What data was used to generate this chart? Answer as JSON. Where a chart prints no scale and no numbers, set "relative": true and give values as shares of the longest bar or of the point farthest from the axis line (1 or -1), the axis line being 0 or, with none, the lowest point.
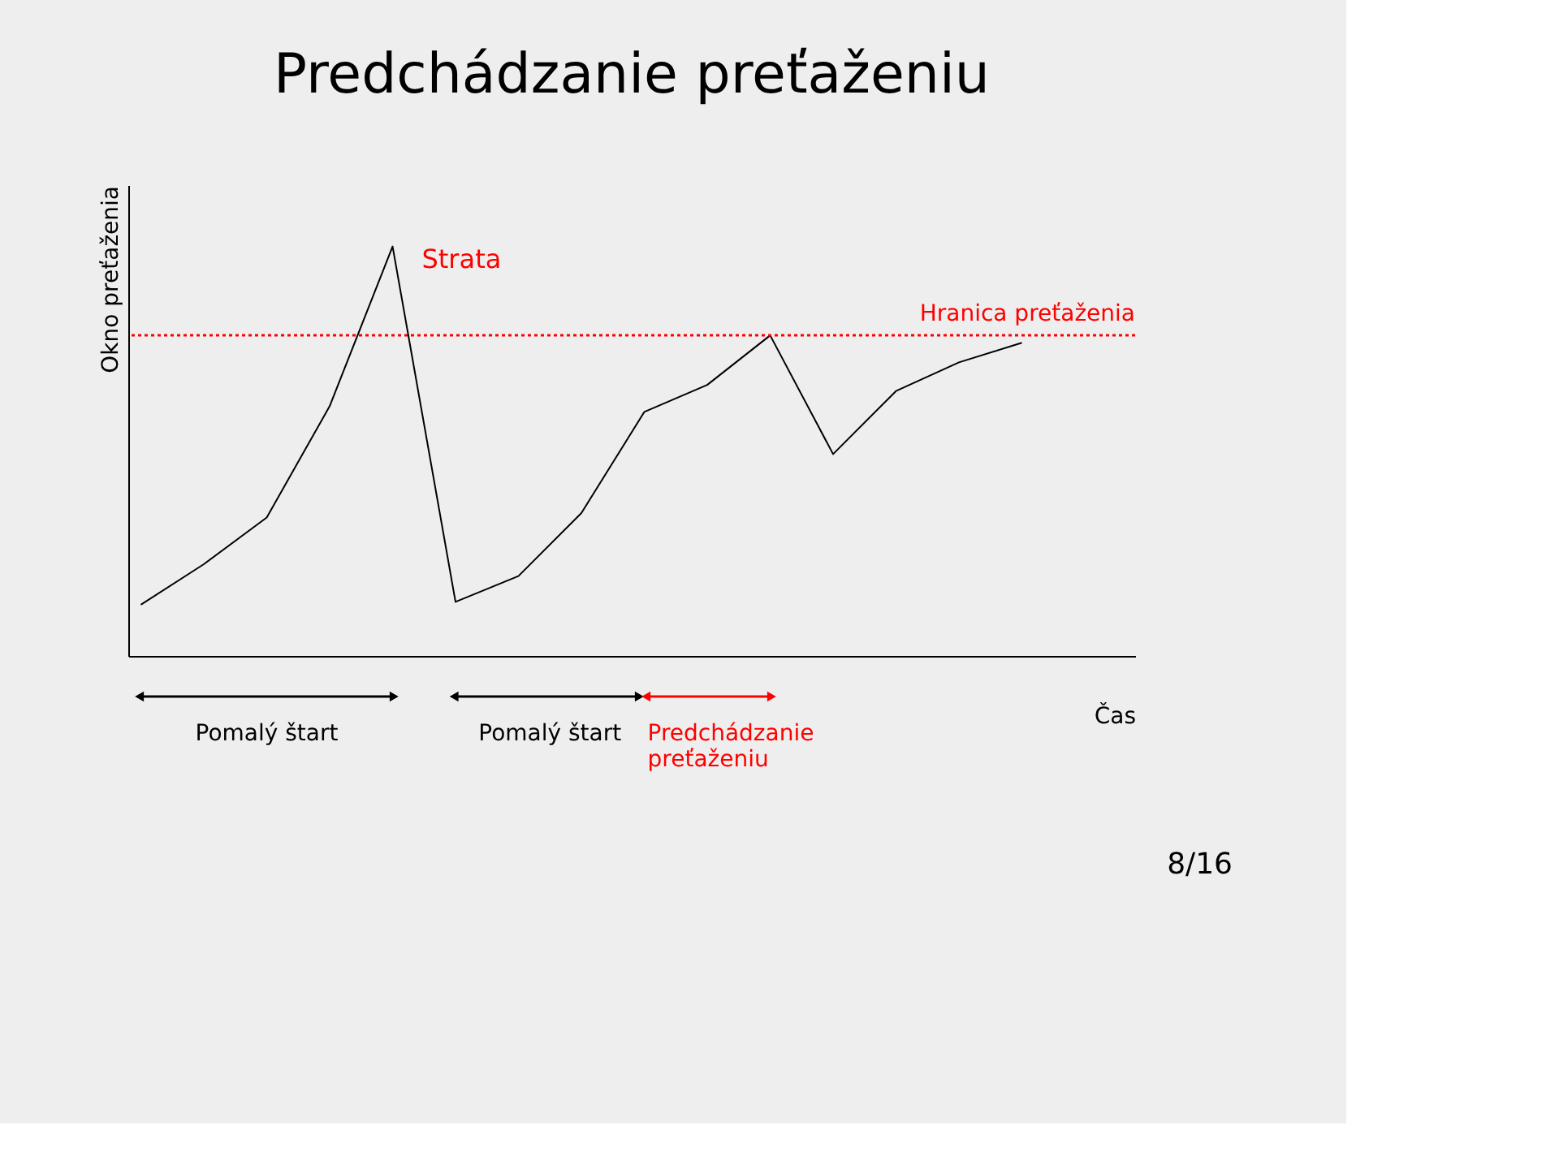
{
  "chart_data": {
    "type": "line",
    "title": "Predchádzanie preťaženiu",
    "xlabel": "Čas",
    "ylabel": "Okno preťaženia",
    "relative": true,
    "tick_labels": false,
    "grid": false,
    "marker": "none",
    "line_style": "solid",
    "categories": [
      null,
      null,
      null,
      null,
      null,
      null,
      null,
      null,
      null,
      null,
      null,
      null,
      null,
      null,
      null
    ],
    "series": [
      {
        "color": "#000000",
        "values": [
          0.125,
          0.224,
          0.338,
          0.61,
          1.0,
          0.132,
          0.195,
          0.349,
          0.596,
          0.662,
          0.783,
          0.493,
          0.647,
          0.717,
          0.765
        ]
      }
    ],
    "ref_lines": [
      {
        "axis": "y",
        "value": 0.783,
        "label": "Hranica preťaženia",
        "color": "#ff0000",
        "line_style": "dotted"
      }
    ],
    "annotations": [
      "Strata",
      "Pomalý štart",
      "Pomalý štart",
      "Predchádzanie preťaženiu",
      "8/16"
    ]
  }
}
